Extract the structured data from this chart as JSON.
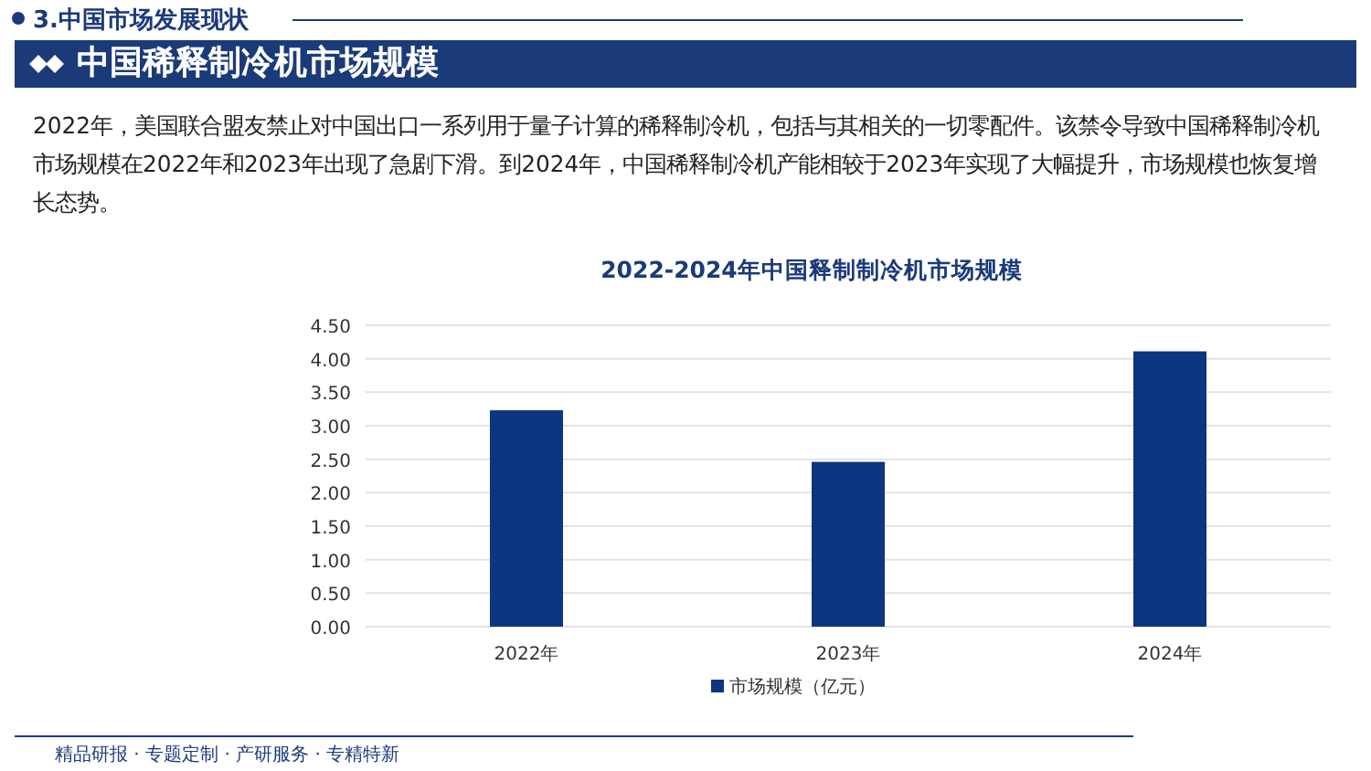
{
  "chart_data": {
    "type": "bar",
    "title": "2022-2024年中国释制制冷机市场规模",
    "annotations": [
      "3.中国市场发展现状",
      "中国稀释制冷机市场规模",
      "2022年，美国联合盟友禁止对中国出口一系列用于量子计算的稀释制冷机，包括与其相关的一切零配件。该禁令导致中国稀释制冷机市场规模在2022年和2023年出现了急剧下滑。到2024年，中国稀释制冷机产能相较于2023年实现了大幅提升，市场规模也恢复增长态势。",
      "精品研报 · 专题定制 · 产研服务 · 专精特新"
    ],
    "categories": [
      "2022年",
      "2023年",
      "2024年"
    ],
    "series": [
      {
        "name": "市场规模（亿元）",
        "color": "#0d3580",
        "values": [
          3.23,
          2.46,
          4.11
        ]
      }
    ],
    "ylim": [
      0,
      4.5
    ],
    "yticks": [
      {
        "value": 0,
        "label": "0.00"
      },
      {
        "value": 0.5,
        "label": "0.50"
      },
      {
        "value": 1,
        "label": "1.00"
      },
      {
        "value": 1.5,
        "label": "1.50"
      },
      {
        "value": 2,
        "label": "2.00"
      },
      {
        "value": 2.5,
        "label": "2.50"
      },
      {
        "value": 3,
        "label": "3.00"
      },
      {
        "value": 3.5,
        "label": "3.50"
      },
      {
        "value": 4,
        "label": "4.00"
      },
      {
        "value": 4.5,
        "label": "4.50"
      }
    ],
    "grid": "y",
    "legend": "bottom"
  }
}
